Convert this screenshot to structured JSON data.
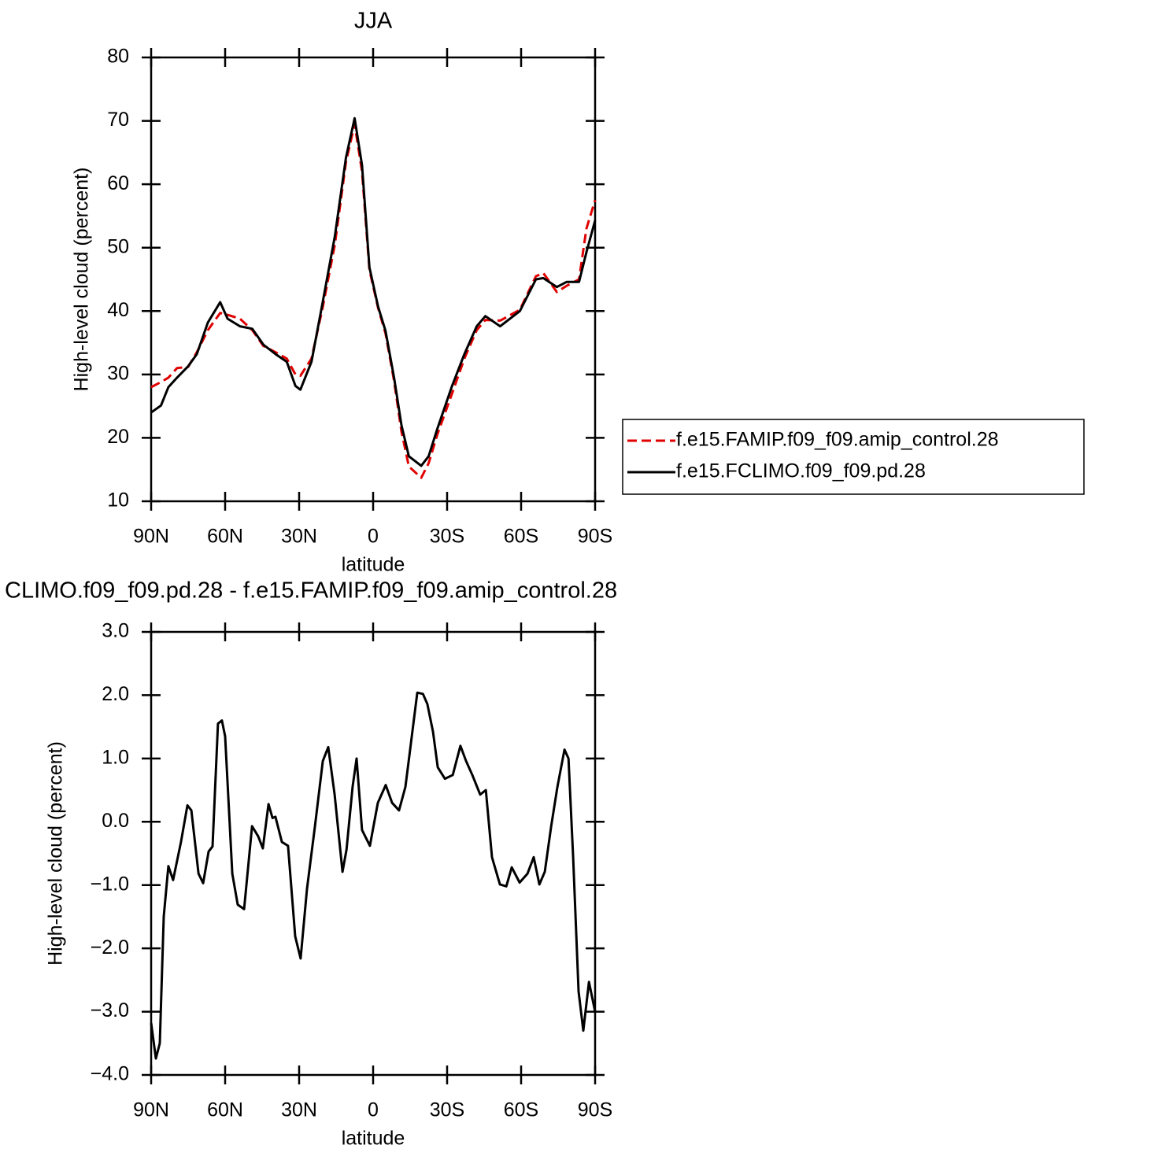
{
  "chart_data": [
    {
      "type": "line",
      "title": "JJA",
      "xlabel": "latitude",
      "ylabel": "High-level cloud (percent)",
      "x": [
        90,
        86,
        83,
        79.5,
        75,
        71.5,
        67,
        62,
        59,
        54,
        49,
        44.5,
        39.5,
        35,
        31.5,
        29.5,
        25,
        20.5,
        15.5,
        11,
        7.5,
        4.5,
        1.5,
        -2,
        -5,
        -8.5,
        -11.5,
        -14.5,
        -19.5,
        -22.5,
        -26,
        -32,
        -37,
        -42,
        -45.5,
        -51.5,
        -59.5,
        -66,
        -69,
        -74.5,
        -78.5,
        -83.5,
        -86.5,
        -90
      ],
      "series": [
        {
          "name": "f.e15.FAMIP.f09_f09.amip_control.28",
          "color": "#e00000",
          "style": "dashed",
          "values": [
            28,
            28.8,
            29.5,
            31,
            31.2,
            33.5,
            37,
            39.7,
            39.4,
            38.8,
            37,
            34.5,
            33.5,
            32.5,
            30,
            29.8,
            32.5,
            40.5,
            50.5,
            63.5,
            69.5,
            62,
            46.5,
            40.5,
            36.5,
            29,
            21,
            15.5,
            13.7,
            16,
            20.5,
            27,
            32.5,
            37,
            38.6,
            38.5,
            40.2,
            45.5,
            46,
            43,
            44,
            45,
            53,
            57.5
          ]
        },
        {
          "name": "f.e15.FCLIMO.f09_f09.pd.28",
          "color": "#000000",
          "style": "solid",
          "values": [
            24,
            25.1,
            28,
            29.5,
            31.3,
            33.2,
            38.2,
            41.4,
            38.8,
            37.6,
            37.2,
            34.7,
            33.2,
            32,
            28.2,
            27.6,
            32,
            41.3,
            51.8,
            64.2,
            70.4,
            63,
            46.9,
            40.7,
            36.9,
            29.5,
            22,
            17.1,
            15.6,
            17.1,
            21.4,
            28.2,
            33.2,
            37.6,
            39.2,
            37.6,
            40,
            45,
            45.2,
            43.8,
            44.6,
            44.6,
            49.3,
            54.3
          ]
        }
      ],
      "xlim": [
        90,
        -90
      ],
      "xticks": [
        {
          "value": 90,
          "label": "90N"
        },
        {
          "value": 60,
          "label": "60N"
        },
        {
          "value": 30,
          "label": "30N"
        },
        0,
        {
          "value": -30,
          "label": "30S"
        },
        {
          "value": -60,
          "label": "60S"
        },
        {
          "value": -90,
          "label": "90S"
        }
      ],
      "ylim": [
        10,
        80
      ],
      "yticks": [
        10,
        20,
        30,
        40,
        50,
        60,
        70,
        80
      ],
      "legend": "right"
    },
    {
      "type": "line",
      "title": "CLIMO.f09_f09.pd.28 - f.e15.FAMIP.f09_f09.amip_control.28",
      "xlabel": "latitude",
      "ylabel": "High-level cloud (percent)",
      "x": [
        90,
        88.1,
        86.5,
        84.9,
        83,
        81.1,
        77.9,
        75.3,
        73.7,
        70.8,
        68.9,
        66.7,
        65.1,
        62.9,
        61.3,
        60,
        57.1,
        54.9,
        52.3,
        49.1,
        46.6,
        44.7,
        42.4,
        40.8,
        39.6,
        37,
        34.5,
        31.6,
        29.4,
        26.8,
        23.6,
        20.4,
        18.2,
        15.6,
        12.4,
        10.8,
        8.3,
        6.7,
        4.5,
        1.3,
        -1.9,
        -5.1,
        -7.7,
        -10.5,
        -13.1,
        -14.7,
        -17.9,
        -20.2,
        -22,
        -24.3,
        -26.2,
        -29.1,
        -32.3,
        -35.4,
        -37.7,
        -40.2,
        -43.4,
        -45.7,
        -48.2,
        -51.4,
        -54,
        -56.2,
        -59.4,
        -62.6,
        -65.1,
        -67.4,
        -69.6,
        -72.2,
        -74.7,
        -77.6,
        -79.2,
        -81.1,
        -83.3,
        -85.2,
        -87.5,
        -90
      ],
      "series": [
        {
          "color": "#000000",
          "style": "solid",
          "values": [
            -3.18,
            -3.74,
            -3.5,
            -1.5,
            -0.7,
            -0.92,
            -0.32,
            0.26,
            0.18,
            -0.82,
            -0.97,
            -0.47,
            -0.39,
            1.55,
            1.6,
            1.35,
            -0.82,
            -1.31,
            -1.38,
            -0.07,
            -0.23,
            -0.42,
            0.28,
            0.06,
            0.08,
            -0.32,
            -0.38,
            -1.81,
            -2.16,
            -1.06,
            -0.07,
            0.96,
            1.18,
            0.43,
            -0.79,
            -0.44,
            0.56,
            1.0,
            -0.13,
            -0.38,
            0.3,
            0.58,
            0.3,
            0.18,
            0.55,
            1.05,
            2.04,
            2.02,
            1.86,
            1.42,
            0.86,
            0.68,
            0.74,
            1.2,
            0.96,
            0.74,
            0.43,
            0.5,
            -0.56,
            -0.99,
            -1.02,
            -0.72,
            -0.96,
            -0.82,
            -0.56,
            -0.99,
            -0.79,
            -0.07,
            0.55,
            1.14,
            1.0,
            -0.56,
            -2.68,
            -3.3,
            -2.53,
            -3.0
          ]
        }
      ],
      "xlim": [
        90,
        -90
      ],
      "xticks": [
        {
          "value": 90,
          "label": "90N"
        },
        {
          "value": 60,
          "label": "60N"
        },
        {
          "value": 30,
          "label": "30N"
        },
        0,
        {
          "value": -30,
          "label": "30S"
        },
        {
          "value": -60,
          "label": "60S"
        },
        {
          "value": -90,
          "label": "90S"
        }
      ],
      "ylim": [
        -4,
        3
      ],
      "yticks": [
        {
          "value": -4,
          "label": "−4.0"
        },
        {
          "value": -3,
          "label": "−3.0"
        },
        {
          "value": -2,
          "label": "−2.0"
        },
        {
          "value": -1,
          "label": "−1.0"
        },
        {
          "value": 0,
          "label": "0.0"
        },
        {
          "value": 1,
          "label": "1.0"
        },
        {
          "value": 2,
          "label": "2.0"
        },
        {
          "value": 3,
          "label": "3.0"
        }
      ]
    }
  ]
}
